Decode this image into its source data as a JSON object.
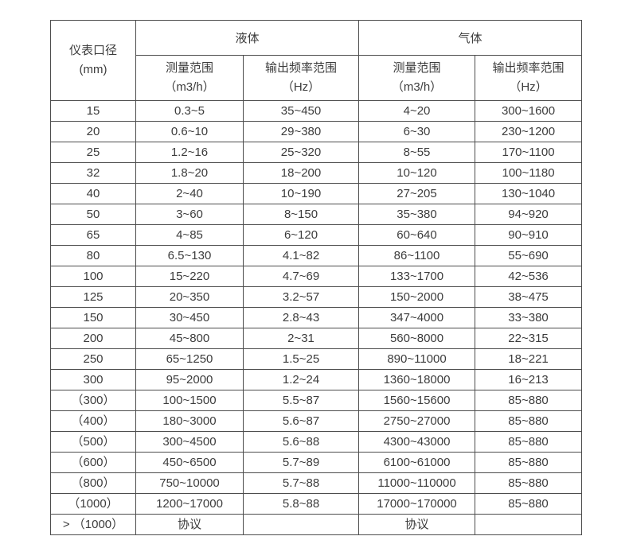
{
  "colors": {
    "border": "#4d4d4d",
    "text": "#3c3c3c",
    "background": "#ffffff"
  },
  "table": {
    "header": {
      "diameter_label": "仪表口径",
      "diameter_unit": "(mm)",
      "liquid": "液体",
      "gas": "气体",
      "measure_range": "测量范围",
      "measure_unit": "（m3/h）",
      "freq_range": "输出频率范围",
      "freq_unit": "（Hz）"
    },
    "rows": [
      [
        "15",
        "0.3~5",
        "35~450",
        "4~20",
        "300~1600"
      ],
      [
        "20",
        "0.6~10",
        "29~380",
        "6~30",
        "230~1200"
      ],
      [
        "25",
        "1.2~16",
        "25~320",
        "8~55",
        "170~1100"
      ],
      [
        "32",
        "1.8~20",
        "18~200",
        "10~120",
        "100~1180"
      ],
      [
        "40",
        "2~40",
        "10~190",
        "27~205",
        "130~1040"
      ],
      [
        "50",
        "3~60",
        "8~150",
        "35~380",
        "94~920"
      ],
      [
        "65",
        "4~85",
        "6~120",
        "60~640",
        "90~910"
      ],
      [
        "80",
        "6.5~130",
        "4.1~82",
        "86~1100",
        "55~690"
      ],
      [
        "100",
        "15~220",
        "4.7~69",
        "133~1700",
        "42~536"
      ],
      [
        "125",
        "20~350",
        "3.2~57",
        "150~2000",
        "38~475"
      ],
      [
        "150",
        "30~450",
        "2.8~43",
        "347~4000",
        "33~380"
      ],
      [
        "200",
        "45~800",
        "2~31",
        "560~8000",
        "22~315"
      ],
      [
        "250",
        "65~1250",
        "1.5~25",
        "890~11000",
        "18~221"
      ],
      [
        "300",
        "95~2000",
        "1.2~24",
        "1360~18000",
        "16~213"
      ],
      [
        "（300）",
        "100~1500",
        "5.5~87",
        "1560~15600",
        "85~880"
      ],
      [
        "（400）",
        "180~3000",
        "5.6~87",
        "2750~27000",
        "85~880"
      ],
      [
        "（500）",
        "300~4500",
        "5.6~88",
        "4300~43000",
        "85~880"
      ],
      [
        "（600）",
        "450~6500",
        "5.7~89",
        "6100~61000",
        "85~880"
      ],
      [
        "（800）",
        "750~10000",
        "5.7~88",
        "11000~110000",
        "85~880"
      ],
      [
        "（1000）",
        "1200~17000",
        "5.8~88",
        "17000~170000",
        "85~880"
      ],
      [
        "> （1000）",
        "协议",
        "",
        "协议",
        ""
      ]
    ]
  }
}
